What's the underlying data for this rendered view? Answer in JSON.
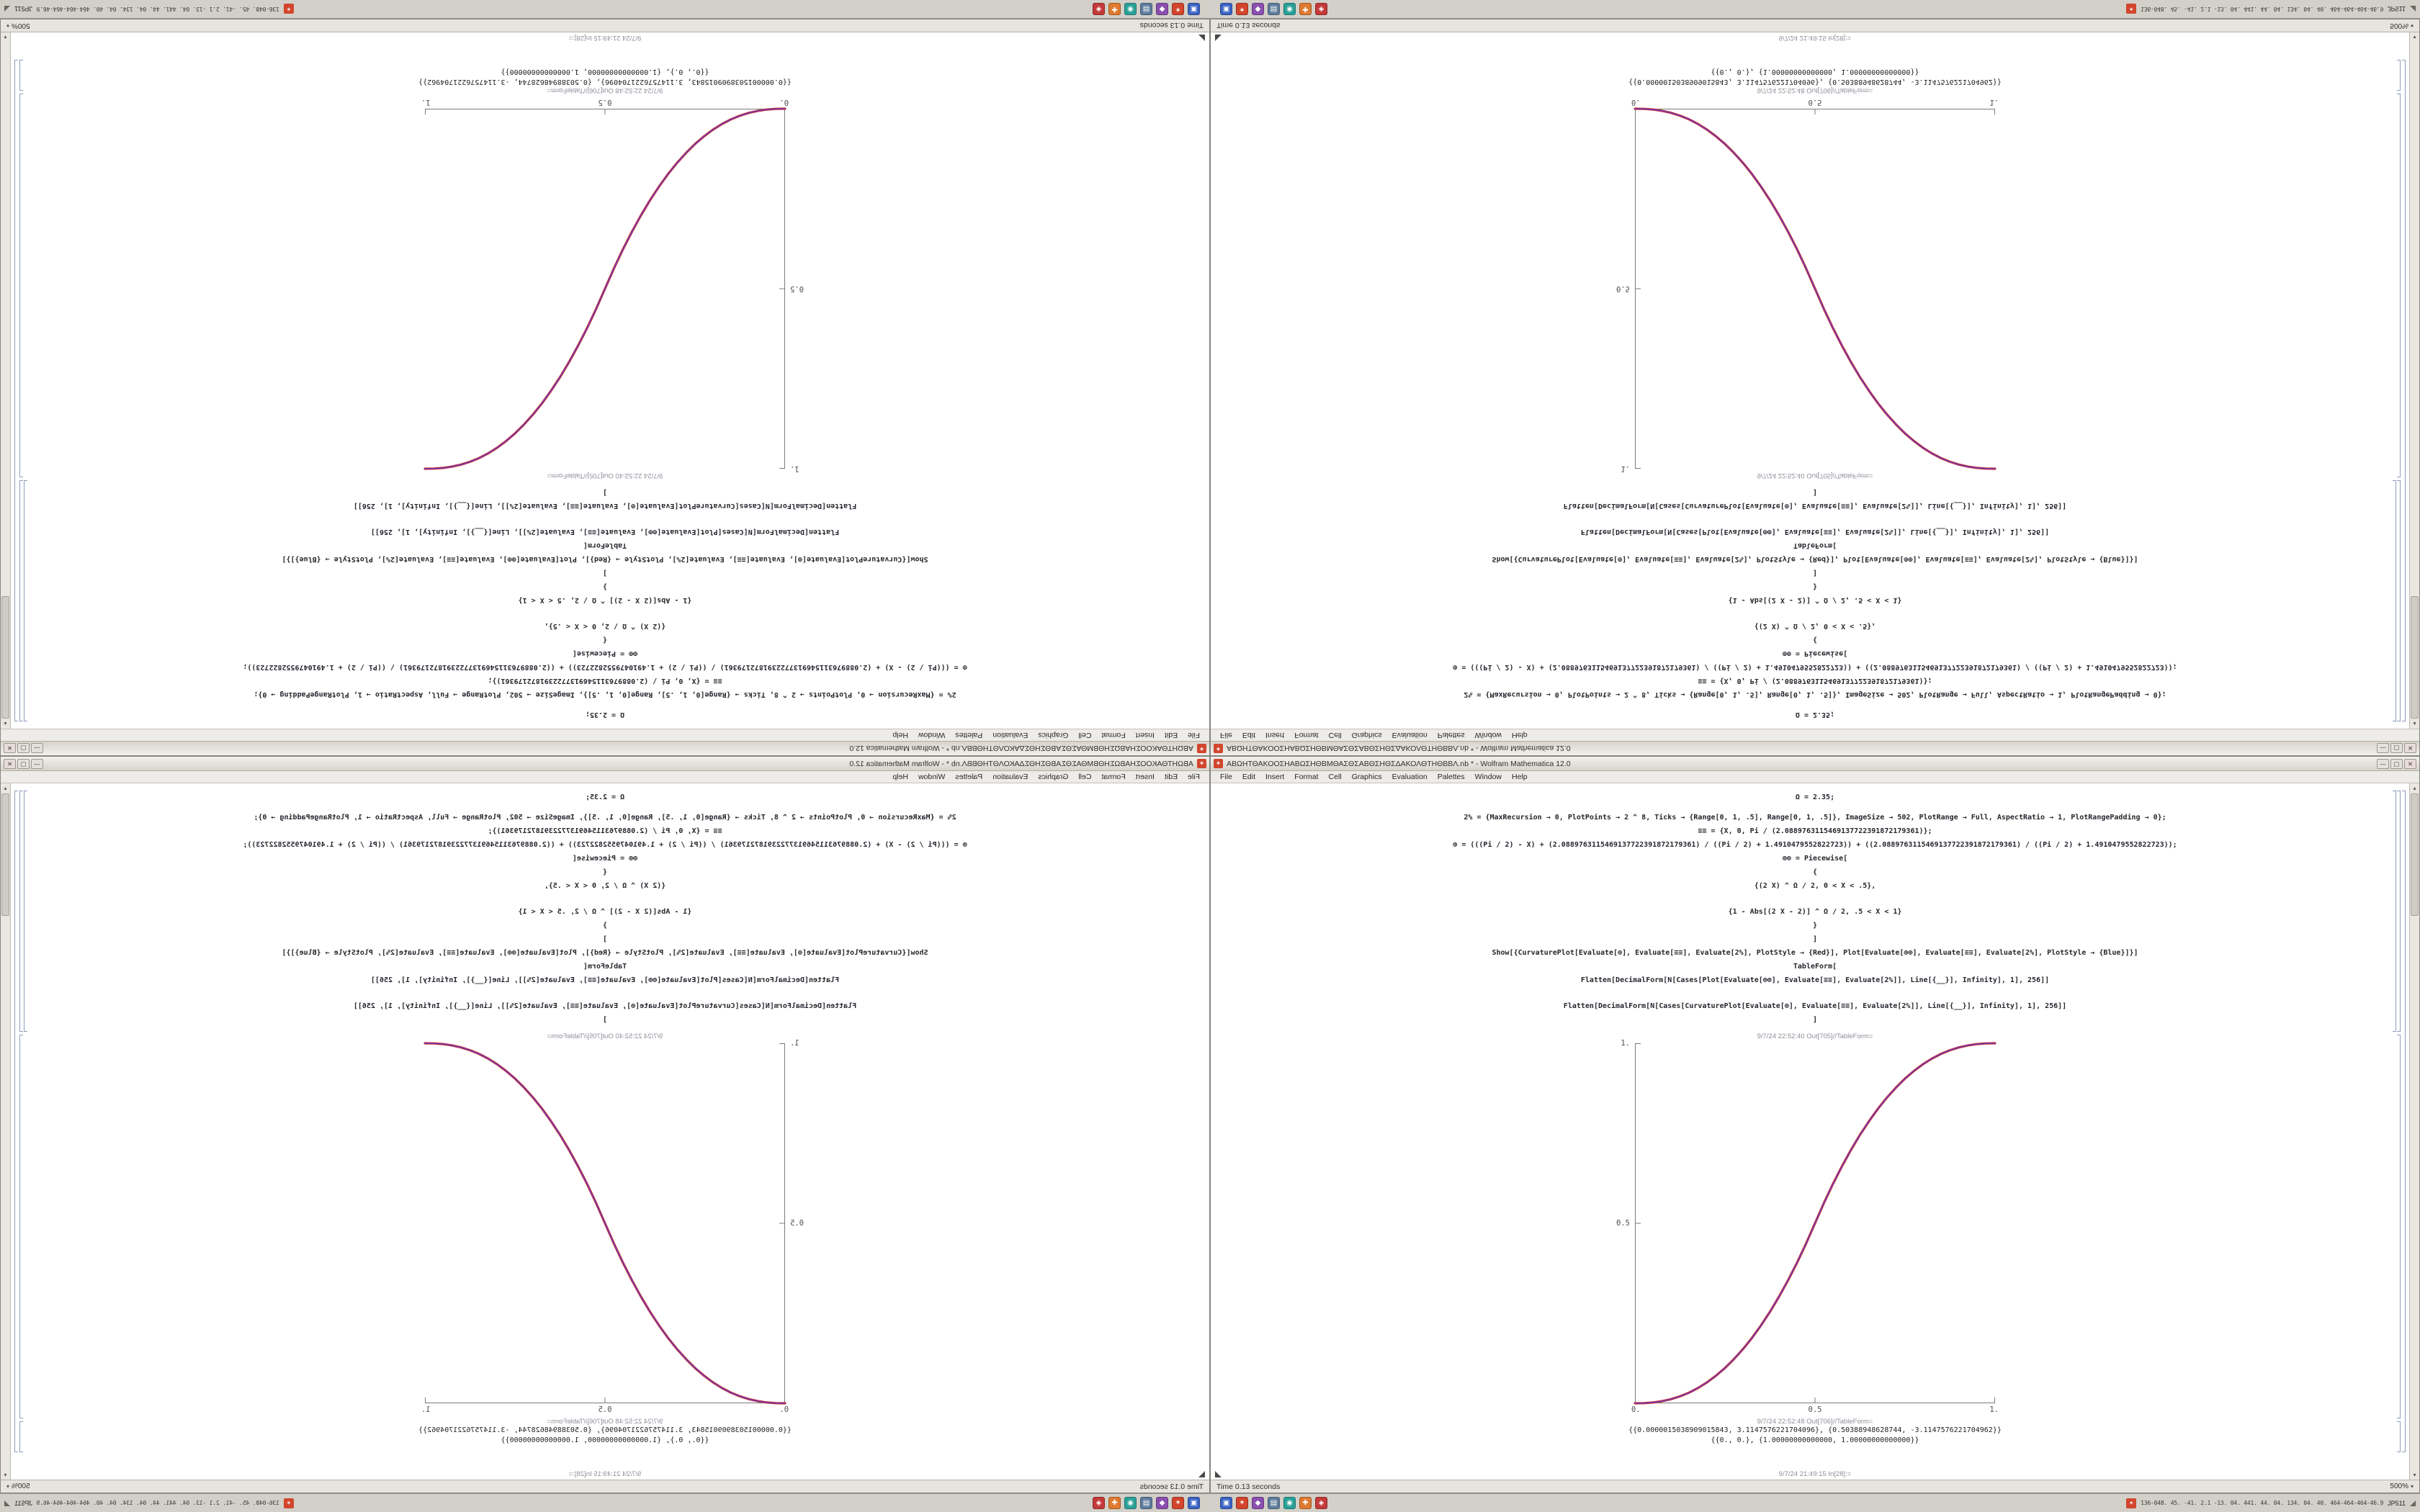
{
  "window": {
    "app_icon_glyph": "✶",
    "title": "ΑΒΩΗΤΘΑΚΟΟΣΗΑΒΩΣΗΘΒΜΘΑΣΘΣΑΒΘΣΗΘΣΔΑΚΟΛΘΤΗΘΒΒΛ.nb * - Wolfram Mathematica 12.0",
    "window_controls": {
      "minimize": "—",
      "maximize": "▢",
      "close": "✕"
    },
    "menus": [
      "File",
      "Edit",
      "Insert",
      "Format",
      "Cell",
      "Graphics",
      "Evaluation",
      "Palettes",
      "Window",
      "Help"
    ],
    "input_cell_lines": [
      "Ω = 2.35;",
      "2% = {MaxRecursion → 0, PlotPoints → 2 ^ 8, Ticks → {Range[0, 1, .5], Range[0, 1, .5]}, ImageSize → 502, PlotRange → Full, AspectRatio → 1, PlotRangePadding → 0};",
      "≡≡ = {X, 0, Pi / (2.0889763115469137722391872179361)};",
      "⊕ = (((Pi / 2) - X) + (2.0889763115469137722391872179361) / ((Pi / 2) + 1.4910479552822723)) + ((2.0889763115469137722391872179361) / ((Pi / 2) + 1.4910479552822723));",
      "⊕⊕ = Piecewise[",
      "{",
      "{(2 X) ^ Ω / 2, 0 < X < .5},",
      "{1 - Abs[(2 X - 2)] ^ Ω / 2, .5 < X < 1}",
      "}",
      "]",
      "Show[{CurvaturePlot[Evaluate[⊕], Evaluate[≡≡], Evaluate[2%], PlotStyle → {Red}], Plot[Evaluate[⊕⊕], Evaluate[≡≡], Evaluate[2%], PlotStyle → {Blue}]}]",
      "TableForm[",
      "Flatten[DecimalForm[N[Cases[Plot[Evaluate[⊕⊕], Evaluate[≡≡], Evaluate[2%]], Line[{__}], Infinity], 1], 256]]",
      "Flatten[DecimalForm[N[Cases[CurvaturePlot[Evaluate[⊕], Evaluate[≡≡], Evaluate[2%]], Line[{__}], Infinity], 1], 256]]",
      "]"
    ],
    "out_plot_label": "9/7/24 22:52:40 Out[705]//TableForm=",
    "out_table_label": "9/7/24 22:52:48 Out[706]//TableForm=",
    "out_table_lines": [
      "{{0.0000015038909015843, 3.1147576221704096}, {0.50388948628744, -3.1147576221704962}}",
      "{{0., 0.}, {1.00000000000000, 1.00000000000000}}"
    ],
    "next_cell_label": "9/7/24 21:49:15 In[28]:=",
    "status_left": "Time 0.13 seconds",
    "zoom_level": "500%",
    "zoom_chevron": "▾",
    "scroll_up_glyph": "▴",
    "scroll_down_glyph": "▾"
  },
  "chart_data": {
    "type": "line",
    "title": "",
    "xlabel": "",
    "ylabel": "",
    "xlim": [
      0,
      1
    ],
    "ylim": [
      0,
      1
    ],
    "grid": false,
    "legend": false,
    "x_ticks": [
      "0.",
      "0.5",
      "1."
    ],
    "y_ticks": [
      "0.",
      "0.5",
      "1."
    ],
    "series": [
      {
        "name": "CurvaturePlot[⊕] (Red)",
        "color": "#d02c2c",
        "points": [
          [
            0,
            0
          ],
          [
            0.025,
            0.0004
          ],
          [
            0.05,
            0.0022
          ],
          [
            0.075,
            0.0058
          ],
          [
            0.1,
            0.0114
          ],
          [
            0.125,
            0.0192
          ],
          [
            0.15,
            0.0295
          ],
          [
            0.175,
            0.0424
          ],
          [
            0.2,
            0.058
          ],
          [
            0.225,
            0.0766
          ],
          [
            0.25,
            0.0981
          ],
          [
            0.275,
            0.1227
          ],
          [
            0.3,
            0.1506
          ],
          [
            0.325,
            0.1817
          ],
          [
            0.35,
            0.2163
          ],
          [
            0.375,
            0.2543
          ],
          [
            0.4,
            0.296
          ],
          [
            0.425,
            0.3413
          ],
          [
            0.45,
            0.3903
          ],
          [
            0.475,
            0.4432
          ],
          [
            0.5,
            0.5
          ],
          [
            0.525,
            0.5568
          ],
          [
            0.55,
            0.6097
          ],
          [
            0.575,
            0.6587
          ],
          [
            0.6,
            0.704
          ],
          [
            0.625,
            0.7457
          ],
          [
            0.65,
            0.7837
          ],
          [
            0.675,
            0.8183
          ],
          [
            0.7,
            0.8494
          ],
          [
            0.725,
            0.8773
          ],
          [
            0.75,
            0.9019
          ],
          [
            0.775,
            0.9234
          ],
          [
            0.8,
            0.942
          ],
          [
            0.825,
            0.9576
          ],
          [
            0.85,
            0.9705
          ],
          [
            0.875,
            0.9808
          ],
          [
            0.9,
            0.9886
          ],
          [
            0.925,
            0.9942
          ],
          [
            0.95,
            0.9978
          ],
          [
            0.975,
            0.9996
          ],
          [
            1,
            1
          ]
        ]
      },
      {
        "name": "Plot[⊕⊕] (Blue)",
        "color": "#5a3bd0",
        "points": [
          [
            0,
            0
          ],
          [
            0.025,
            0.0004
          ],
          [
            0.05,
            0.0022
          ],
          [
            0.075,
            0.0058
          ],
          [
            0.1,
            0.0114
          ],
          [
            0.125,
            0.0192
          ],
          [
            0.15,
            0.0295
          ],
          [
            0.175,
            0.0424
          ],
          [
            0.2,
            0.058
          ],
          [
            0.225,
            0.0766
          ],
          [
            0.25,
            0.0981
          ],
          [
            0.275,
            0.1227
          ],
          [
            0.3,
            0.1506
          ],
          [
            0.325,
            0.1817
          ],
          [
            0.35,
            0.2163
          ],
          [
            0.375,
            0.2543
          ],
          [
            0.4,
            0.296
          ],
          [
            0.425,
            0.3413
          ],
          [
            0.45,
            0.3903
          ],
          [
            0.475,
            0.4432
          ],
          [
            0.5,
            0.5
          ],
          [
            0.525,
            0.5568
          ],
          [
            0.55,
            0.6097
          ],
          [
            0.575,
            0.6587
          ],
          [
            0.6,
            0.704
          ],
          [
            0.625,
            0.7457
          ],
          [
            0.65,
            0.7837
          ],
          [
            0.675,
            0.8183
          ],
          [
            0.7,
            0.8494
          ],
          [
            0.725,
            0.8773
          ],
          [
            0.75,
            0.9019
          ],
          [
            0.775,
            0.9234
          ],
          [
            0.8,
            0.942
          ],
          [
            0.825,
            0.9576
          ],
          [
            0.85,
            0.9705
          ],
          [
            0.875,
            0.9808
          ],
          [
            0.9,
            0.9886
          ],
          [
            0.925,
            0.9942
          ],
          [
            0.95,
            0.9978
          ],
          [
            0.975,
            0.9996
          ],
          [
            1,
            1
          ]
        ]
      }
    ]
  },
  "taskbar": {
    "app_icons": [
      {
        "name": "taskbar-icon-blue-app",
        "color": "#3b63c4",
        "glyph": "▣"
      },
      {
        "name": "taskbar-icon-wolfram",
        "color": "#d2452c",
        "glyph": "✶"
      },
      {
        "name": "taskbar-icon-purple-app",
        "color": "#8a4fb0",
        "glyph": "◆"
      },
      {
        "name": "taskbar-icon-steel-app",
        "color": "#5f7d9c",
        "glyph": "▤"
      },
      {
        "name": "taskbar-icon-teal-app",
        "color": "#2aa198",
        "glyph": "◉"
      },
      {
        "name": "taskbar-icon-orange-app",
        "color": "#e07a30",
        "glyph": "✚"
      },
      {
        "name": "taskbar-icon-red-app",
        "color": "#c43a3a",
        "glyph": "◈"
      }
    ],
    "notify_glyph": "✶",
    "corner_numbers": "136-048. 45. -41. 2.1 -13. 04. 441. 44. 04. 134. 04. 40. 464-464-464-46.9",
    "corner_label": "JP511"
  }
}
